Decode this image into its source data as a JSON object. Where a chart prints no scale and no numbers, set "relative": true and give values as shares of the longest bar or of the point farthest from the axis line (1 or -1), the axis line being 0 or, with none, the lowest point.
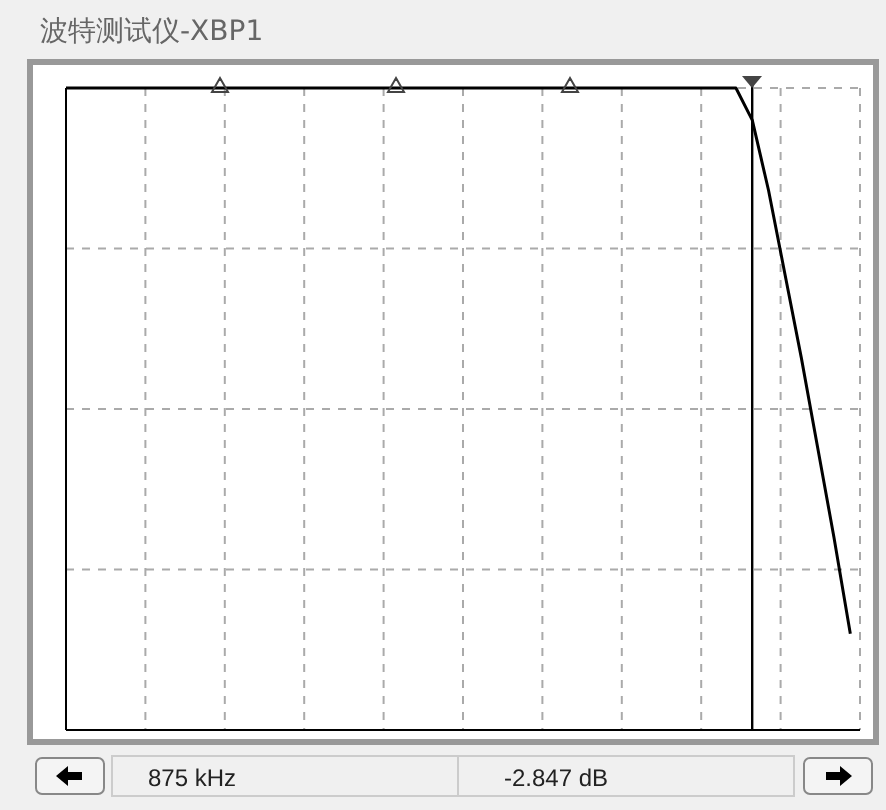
{
  "chart_data": {
    "type": "line",
    "title": "波特测试仪-XBP1",
    "relative": true,
    "categories": [
      null,
      null,
      null,
      null,
      null,
      null,
      null,
      null,
      null,
      null,
      null,
      null,
      null,
      null,
      null,
      null,
      null,
      null,
      null,
      null,
      null,
      null,
      null,
      null,
      null,
      null,
      null,
      null,
      null,
      null,
      null,
      null,
      null,
      null,
      null,
      null,
      null,
      null,
      null,
      null,
      null,
      null,
      null,
      null,
      null,
      null,
      null,
      null,
      null
    ],
    "series": [
      {
        "color": "#000000",
        "values": [
          1,
          1,
          1,
          1,
          1,
          1,
          1,
          1,
          1,
          1,
          1,
          1,
          1,
          1,
          1,
          1,
          1,
          1,
          1,
          1,
          1,
          1,
          1,
          1,
          1,
          1,
          1,
          1,
          1,
          1,
          1,
          1,
          1,
          1,
          1,
          1,
          1,
          1,
          1,
          1,
          1,
          1,
          0.95,
          0.84,
          0.71,
          0.58,
          0.44,
          0.3,
          0.15
        ]
      }
    ],
    "grid": true,
    "marker": "none",
    "line_style": "solid",
    "annotations": [
      "875 kHz",
      "-2.847 dB"
    ]
  }
}
